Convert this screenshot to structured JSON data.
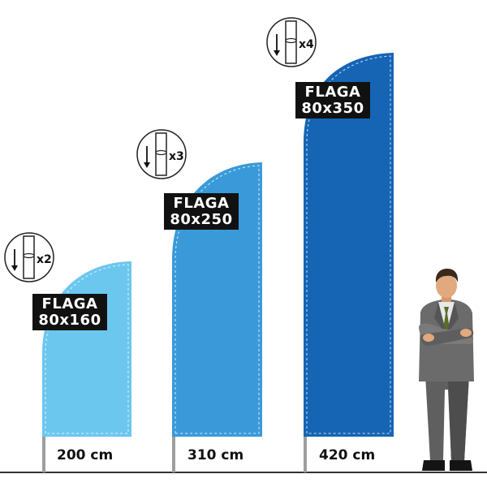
{
  "flags": [
    {
      "id": "small",
      "title": "FLAGA",
      "size": "80x160",
      "height_label": "200 cm",
      "segments_label": "x2",
      "color": "#6cc7ef"
    },
    {
      "id": "medium",
      "title": "FLAGA",
      "size": "80x250",
      "height_label": "310 cm",
      "segments_label": "x3",
      "color": "#3a9ad9"
    },
    {
      "id": "large",
      "title": "FLAGA",
      "size": "80x350",
      "height_label": "420 cm",
      "segments_label": "x4",
      "color": "#1565b4"
    }
  ],
  "icons": {
    "pole_segment": "pole-segment-icon",
    "person": "businessman-figure"
  },
  "colors": {
    "ground": "#333333",
    "pole": "#9e9e9e",
    "label_bg": "#111111"
  }
}
